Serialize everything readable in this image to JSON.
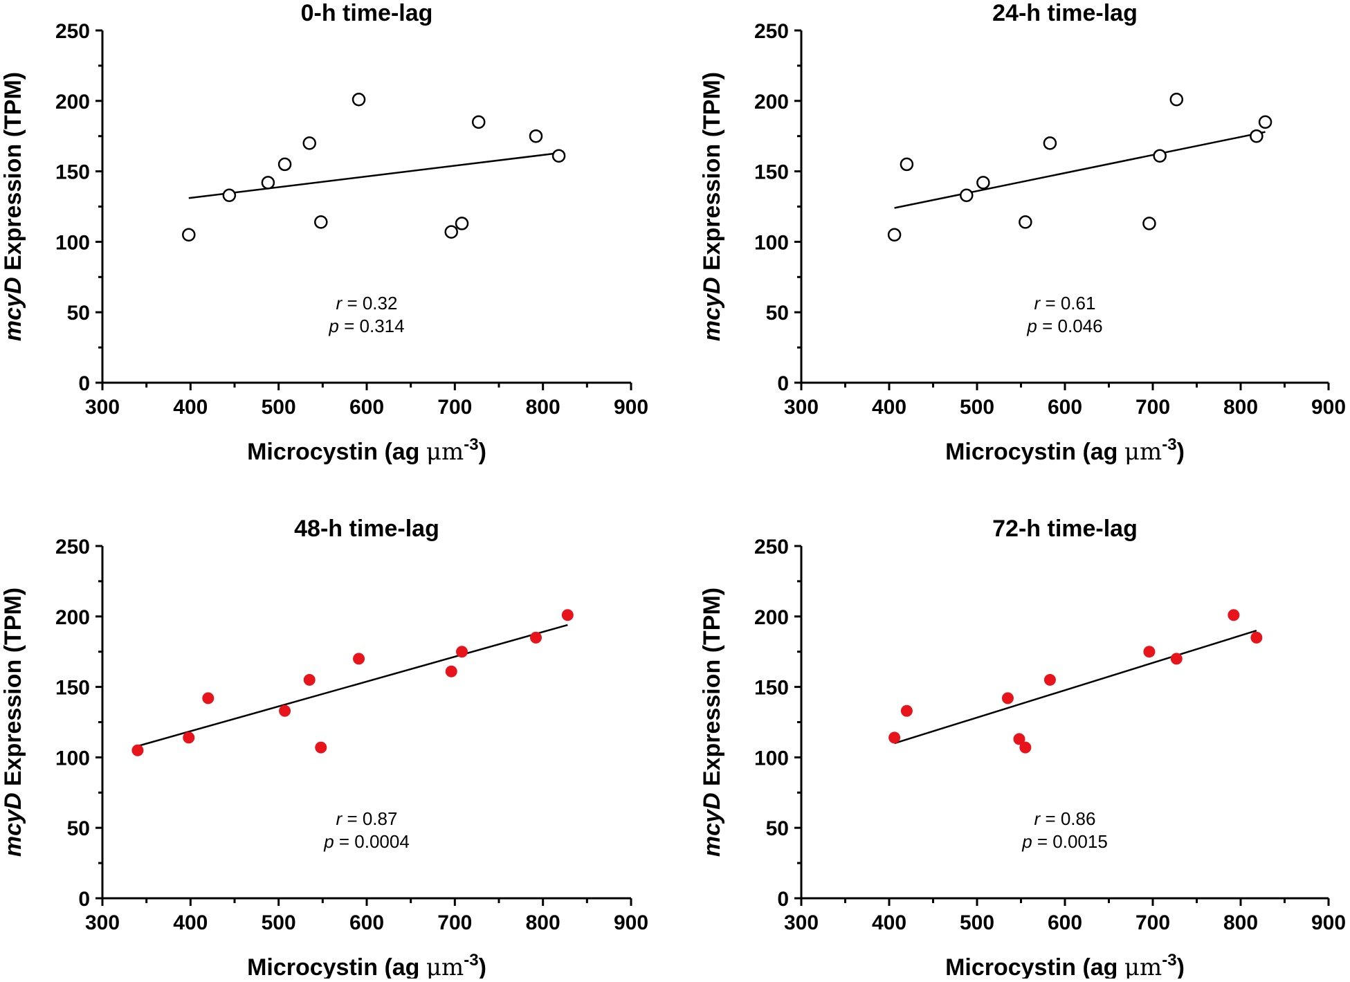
{
  "chart_data": [
    {
      "type": "scatter",
      "title": "0-h time-lag",
      "xlabel": {
        "main": "Microcystin (ag ",
        "unit": "μm",
        "sup": "-3",
        "close": ")"
      },
      "ylabel": {
        "italic": "mcyD",
        "rest": " Expression (TPM)"
      },
      "xlim": [
        300,
        900
      ],
      "ylim": [
        0,
        250
      ],
      "xticks": [
        300,
        400,
        500,
        600,
        700,
        800,
        900
      ],
      "yticks": [
        0,
        50,
        100,
        150,
        200,
        250
      ],
      "marker": "open",
      "marker_color": "#000000",
      "points": [
        {
          "x": 398,
          "y": 105
        },
        {
          "x": 444,
          "y": 133
        },
        {
          "x": 488,
          "y": 142
        },
        {
          "x": 507,
          "y": 155
        },
        {
          "x": 535,
          "y": 170
        },
        {
          "x": 548,
          "y": 114
        },
        {
          "x": 591,
          "y": 201
        },
        {
          "x": 696,
          "y": 107
        },
        {
          "x": 708,
          "y": 113
        },
        {
          "x": 727,
          "y": 185
        },
        {
          "x": 792,
          "y": 175
        },
        {
          "x": 818,
          "y": 161
        }
      ],
      "fit": {
        "x": [
          398,
          818
        ],
        "y": [
          131,
          163
        ]
      },
      "stats": {
        "r_label": "r",
        "r_value": " = 0.32",
        "p_label": "p",
        "p_value": " = 0.314"
      }
    },
    {
      "type": "scatter",
      "title": "24-h time-lag",
      "xlabel": {
        "main": "Microcystin (ag ",
        "unit": "μm",
        "sup": "-3",
        "close": ")"
      },
      "ylabel": {
        "italic": "mcyD",
        "rest": " Expression (TPM)"
      },
      "xlim": [
        300,
        900
      ],
      "ylim": [
        0,
        250
      ],
      "xticks": [
        300,
        400,
        500,
        600,
        700,
        800,
        900
      ],
      "yticks": [
        0,
        50,
        100,
        150,
        200,
        250
      ],
      "marker": "open",
      "marker_color": "#000000",
      "points": [
        {
          "x": 406,
          "y": 105
        },
        {
          "x": 420,
          "y": 155
        },
        {
          "x": 488,
          "y": 133
        },
        {
          "x": 507,
          "y": 142
        },
        {
          "x": 555,
          "y": 114
        },
        {
          "x": 583,
          "y": 170
        },
        {
          "x": 696,
          "y": 113
        },
        {
          "x": 708,
          "y": 161
        },
        {
          "x": 727,
          "y": 201
        },
        {
          "x": 818,
          "y": 175
        },
        {
          "x": 828,
          "y": 185
        }
      ],
      "fit": {
        "x": [
          406,
          828
        ],
        "y": [
          124,
          178
        ]
      },
      "stats": {
        "r_label": "r",
        "r_value": " = 0.61",
        "p_label": "p",
        "p_value": " = 0.046"
      }
    },
    {
      "type": "scatter",
      "title": "48-h time-lag",
      "xlabel": {
        "main": "Microcystin (ag ",
        "unit": "μm",
        "sup": "-3",
        "close": ")"
      },
      "ylabel": {
        "italic": "mcyD",
        "rest": " Expression (TPM)"
      },
      "xlim": [
        300,
        900
      ],
      "ylim": [
        0,
        250
      ],
      "xticks": [
        300,
        400,
        500,
        600,
        700,
        800,
        900
      ],
      "yticks": [
        0,
        50,
        100,
        150,
        200,
        250
      ],
      "marker": "filled",
      "marker_color": "#e8141c",
      "points": [
        {
          "x": 340,
          "y": 105
        },
        {
          "x": 398,
          "y": 114
        },
        {
          "x": 420,
          "y": 142
        },
        {
          "x": 507,
          "y": 133
        },
        {
          "x": 535,
          "y": 155
        },
        {
          "x": 548,
          "y": 107
        },
        {
          "x": 591,
          "y": 170
        },
        {
          "x": 696,
          "y": 161
        },
        {
          "x": 708,
          "y": 175
        },
        {
          "x": 792,
          "y": 185
        },
        {
          "x": 828,
          "y": 201
        }
      ],
      "fit": {
        "x": [
          340,
          828
        ],
        "y": [
          108,
          194
        ]
      },
      "stats": {
        "r_label": "r",
        "r_value": " = 0.87",
        "p_label": "p",
        "p_value": " = 0.0004"
      }
    },
    {
      "type": "scatter",
      "title": "72-h time-lag",
      "xlabel": {
        "main": "Microcystin (ag ",
        "unit": "μm",
        "sup": "-3",
        "close": ")"
      },
      "ylabel": {
        "italic": "mcyD",
        "rest": " Expression (TPM)"
      },
      "xlim": [
        300,
        900
      ],
      "ylim": [
        0,
        250
      ],
      "xticks": [
        300,
        400,
        500,
        600,
        700,
        800,
        900
      ],
      "yticks": [
        0,
        50,
        100,
        150,
        200,
        250
      ],
      "marker": "filled",
      "marker_color": "#e8141c",
      "points": [
        {
          "x": 406,
          "y": 114
        },
        {
          "x": 420,
          "y": 133
        },
        {
          "x": 535,
          "y": 142
        },
        {
          "x": 548,
          "y": 113
        },
        {
          "x": 555,
          "y": 107
        },
        {
          "x": 583,
          "y": 155
        },
        {
          "x": 696,
          "y": 175
        },
        {
          "x": 727,
          "y": 170
        },
        {
          "x": 792,
          "y": 201
        },
        {
          "x": 818,
          "y": 185
        }
      ],
      "fit": {
        "x": [
          406,
          818
        ],
        "y": [
          110,
          190
        ]
      },
      "stats": {
        "r_label": "r",
        "r_value": " = 0.86",
        "p_label": "p",
        "p_value": " = 0.0015"
      }
    }
  ]
}
